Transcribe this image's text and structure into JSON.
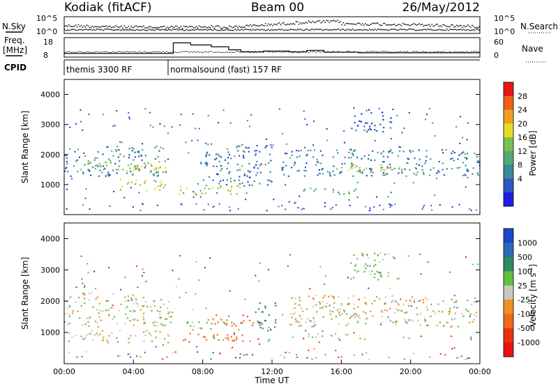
{
  "header": {
    "station": "Kodiak (fitACF)",
    "beam": "Beam 00",
    "date": "26/May/2012"
  },
  "top_panels": {
    "left_labels": [
      "N.Sky",
      "Freq.",
      "[MHz]",
      "CPID"
    ],
    "right_labels": [
      "N.Search",
      "Nave"
    ],
    "noise_ticks_left": [
      "10^5",
      "10^0"
    ],
    "noise_ticks_right": [
      "10^5",
      "10^0"
    ],
    "freq_ticks": [
      "18",
      "8"
    ],
    "nave_ticks": [
      "60",
      "0"
    ],
    "cpid_segments": [
      {
        "label": "themis 3300 RF",
        "start_hour": 0,
        "end_hour": 6
      },
      {
        "label": "normalsound (fast) 157 RF",
        "start_hour": 6,
        "end_hour": 24
      }
    ],
    "nave_profile": [
      {
        "hour": 0,
        "value": 10
      },
      {
        "hour": 6,
        "value": 10
      },
      {
        "hour": 6.3,
        "value": 45
      },
      {
        "hour": 7.3,
        "value": 38
      },
      {
        "hour": 8.5,
        "value": 32
      },
      {
        "hour": 9.5,
        "value": 22
      },
      {
        "hour": 10.2,
        "value": 15
      },
      {
        "hour": 11.5,
        "value": 18
      },
      {
        "hour": 13,
        "value": 15
      },
      {
        "hour": 14,
        "value": 20
      },
      {
        "hour": 15,
        "value": 14
      },
      {
        "hour": 17,
        "value": 12
      },
      {
        "hour": 24,
        "value": 12
      }
    ]
  },
  "chart_data": [
    {
      "type": "heatmap",
      "panel": "power",
      "xlabel": "",
      "ylabel": "Slant Range [km]",
      "xlim": [
        "00:00",
        "24:00"
      ],
      "ylim": [
        0,
        4500
      ],
      "yticks": [
        "1000",
        "2000",
        "3000",
        "4000"
      ],
      "colorbar": {
        "label": "Power [dB]",
        "ticks": [
          "4",
          "8",
          "12",
          "16",
          "20",
          "24",
          "28"
        ],
        "colors": [
          "#1e1ee6",
          "#2a58c0",
          "#3a8a9a",
          "#50a878",
          "#7cc04a",
          "#e6dc28",
          "#f0a020",
          "#f06018",
          "#e81414"
        ]
      },
      "regions": [
        {
          "t0": 0.0,
          "t1": 6.0,
          "r0": 1300,
          "r1": 2300,
          "level": 12
        },
        {
          "t0": 0.5,
          "t1": 6.0,
          "r0": 1500,
          "r1": 1800,
          "level": 20
        },
        {
          "t0": 3.0,
          "t1": 6.0,
          "r0": 800,
          "r1": 1200,
          "level": 24
        },
        {
          "t0": 3.5,
          "t1": 6.0,
          "r0": 1400,
          "r1": 1700,
          "level": 26
        },
        {
          "t0": 6.5,
          "t1": 10.5,
          "r0": 700,
          "r1": 1000,
          "level": 22
        },
        {
          "t0": 9.2,
          "t1": 9.6,
          "r0": 600,
          "r1": 900,
          "level": 28
        },
        {
          "t0": 8.0,
          "t1": 12.0,
          "r0": 1000,
          "r1": 2400,
          "level": 10
        },
        {
          "t0": 12.5,
          "t1": 24.0,
          "r0": 1300,
          "r1": 2200,
          "level": 12
        },
        {
          "t0": 15.0,
          "t1": 20.0,
          "r0": 1400,
          "r1": 1700,
          "level": 22
        },
        {
          "t0": 13.5,
          "t1": 17.5,
          "r0": 700,
          "r1": 900,
          "level": 14
        },
        {
          "t0": 16.5,
          "t1": 19.0,
          "r0": 2700,
          "r1": 3600,
          "level": 8
        }
      ]
    },
    {
      "type": "heatmap",
      "panel": "velocity",
      "xlabel": "Time UT",
      "ylabel": "Slant Range [km]",
      "xlim": [
        "00:00",
        "24:00"
      ],
      "ylim": [
        0,
        4500
      ],
      "xticks": [
        "00:00",
        "04:00",
        "08:00",
        "12:00",
        "16:00",
        "20:00",
        "00:00"
      ],
      "yticks": [
        "1000",
        "2000",
        "3000",
        "4000"
      ],
      "colorbar": {
        "label": "Velocity  [m s",
        "label_sup": "-1",
        "label_end": "]",
        "ticks": [
          "1000",
          "500",
          "100",
          "25",
          "-25",
          "-100",
          "-500",
          "-1000"
        ],
        "colors": [
          "#1e46c8",
          "#2a6ab8",
          "#2e8a60",
          "#60c040",
          "#c8c8c0",
          "#f09020",
          "#f06a18",
          "#e83010",
          "#e81414"
        ]
      },
      "regions": [
        {
          "t0": 0.0,
          "t1": 6.2,
          "r0": 1200,
          "r1": 2300,
          "velocity": 0
        },
        {
          "t0": 0.2,
          "t1": 6.0,
          "r0": 700,
          "r1": 1100,
          "velocity": 0
        },
        {
          "t0": 6.5,
          "t1": 10.5,
          "r0": 700,
          "r1": 1000,
          "velocity": -300
        },
        {
          "t0": 8.5,
          "t1": 11.0,
          "r0": 1200,
          "r1": 1600,
          "velocity": -200
        },
        {
          "t0": 7.0,
          "t1": 9.5,
          "r0": 1100,
          "r1": 1500,
          "velocity": 60
        },
        {
          "t0": 11.0,
          "t1": 12.2,
          "r0": 1000,
          "r1": 2000,
          "velocity": 200
        },
        {
          "t0": 13.0,
          "t1": 24.0,
          "r0": 1200,
          "r1": 2200,
          "velocity": 0
        },
        {
          "t0": 14.0,
          "t1": 17.5,
          "r0": 800,
          "r1": 1000,
          "velocity": 0
        },
        {
          "t0": 16.5,
          "t1": 19.0,
          "r0": 2700,
          "r1": 3600,
          "velocity": 40
        }
      ]
    }
  ]
}
